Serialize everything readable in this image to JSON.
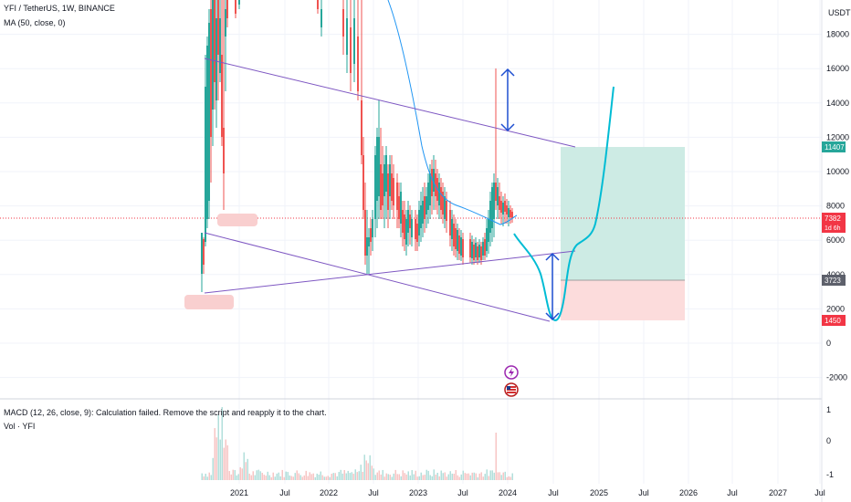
{
  "header": {
    "symbol": "YFI / TetherUS, 1W, BINANCE",
    "ma_label": "MA (50, close, 0)",
    "currency": "USDT"
  },
  "indicators": {
    "macd_label": "MACD (12, 26, close, 9): Calculation failed. Remove the script and reapply it to the chart.",
    "vol_label": "Vol · YFI"
  },
  "colors": {
    "up": "#26a69a",
    "down": "#ef5350",
    "ma": "#2196f3",
    "trendline": "#7e57c2",
    "projection": "#00bcd4",
    "arrow": "#1e4fd1",
    "target_zone": "#cdebe4",
    "stop_zone": "#fcdcdc",
    "current_price": "#f23645"
  },
  "chart_data": {
    "type": "candlestick",
    "price_axis": {
      "ticks": [
        "18000",
        "16000",
        "14000",
        "12000",
        "10000",
        "8000",
        "6000",
        "4000",
        "2000",
        "0",
        "-2000"
      ],
      "range": [
        -2500,
        19800
      ]
    },
    "time_axis": {
      "ticks": [
        "2021",
        "Jul",
        "2022",
        "Jul",
        "2023",
        "Jul",
        "2024",
        "Jul",
        "2025",
        "Jul",
        "2026",
        "Jul",
        "2027",
        "Jul"
      ]
    },
    "price_labels": [
      {
        "text": "11407",
        "value": 11407,
        "color": "#26a69a"
      },
      {
        "text": "7382",
        "sub": "1d 6h",
        "value": 7382,
        "color": "#f23645"
      },
      {
        "text": "3723",
        "value": 3723,
        "color": "#5d606b"
      },
      {
        "text": "1450",
        "value": 1450,
        "color": "#f23645"
      }
    ],
    "position": {
      "target": 11407,
      "entry": 3723,
      "stop": 1450
    },
    "series": [
      {
        "name": "MA (50, close, 0)",
        "approx_points": [
          [
            2021.5,
            19800
          ],
          [
            2022.3,
            11500
          ],
          [
            2022.7,
            7800
          ],
          [
            2023.0,
            7300
          ],
          [
            2023.5,
            6500
          ],
          [
            2023.85,
            6200
          ],
          [
            2024.05,
            7300
          ]
        ]
      },
      {
        "name": "YFI / TetherUS weekly close",
        "approx_points": [
          [
            2020.75,
            7000
          ],
          [
            2021.0,
            19800
          ],
          [
            2021.4,
            19800
          ],
          [
            2021.8,
            19800
          ],
          [
            2022.2,
            19800
          ],
          [
            2022.45,
            6000
          ],
          [
            2022.6,
            8000
          ],
          [
            2022.75,
            9000
          ],
          [
            2022.9,
            7000
          ],
          [
            2023.05,
            8500
          ],
          [
            2023.25,
            7500
          ],
          [
            2023.5,
            6000
          ],
          [
            2023.7,
            5200
          ],
          [
            2023.85,
            6500
          ],
          [
            2023.9,
            9000
          ],
          [
            2024.0,
            8000
          ],
          [
            2024.05,
            7382
          ]
        ]
      }
    ]
  },
  "macd_axis": {
    "ticks": [
      "1",
      "0",
      "-1"
    ]
  }
}
